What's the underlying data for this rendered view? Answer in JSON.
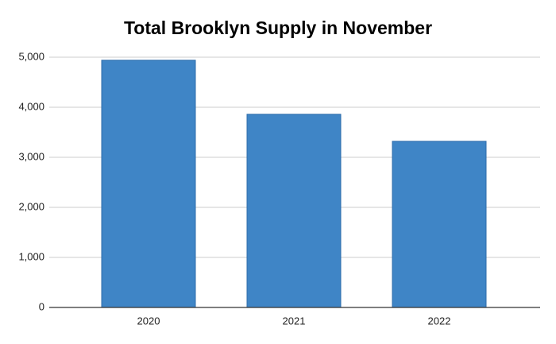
{
  "chart_data": {
    "type": "bar",
    "title": "Total Brooklyn Supply in November",
    "categories": [
      "2020",
      "2021",
      "2022"
    ],
    "values": [
      4940,
      3860,
      3320
    ],
    "color": "#3f85c6",
    "ylim": [
      0,
      5000
    ],
    "yticks": [
      0,
      {
        "value": 1000,
        "label": "1,000"
      },
      {
        "value": 2000,
        "label": "2,000"
      },
      {
        "value": 3000,
        "label": "3,000"
      },
      {
        "value": 4000,
        "label": "4,000"
      },
      {
        "value": 5000,
        "label": "5,000"
      }
    ],
    "grid": true
  }
}
